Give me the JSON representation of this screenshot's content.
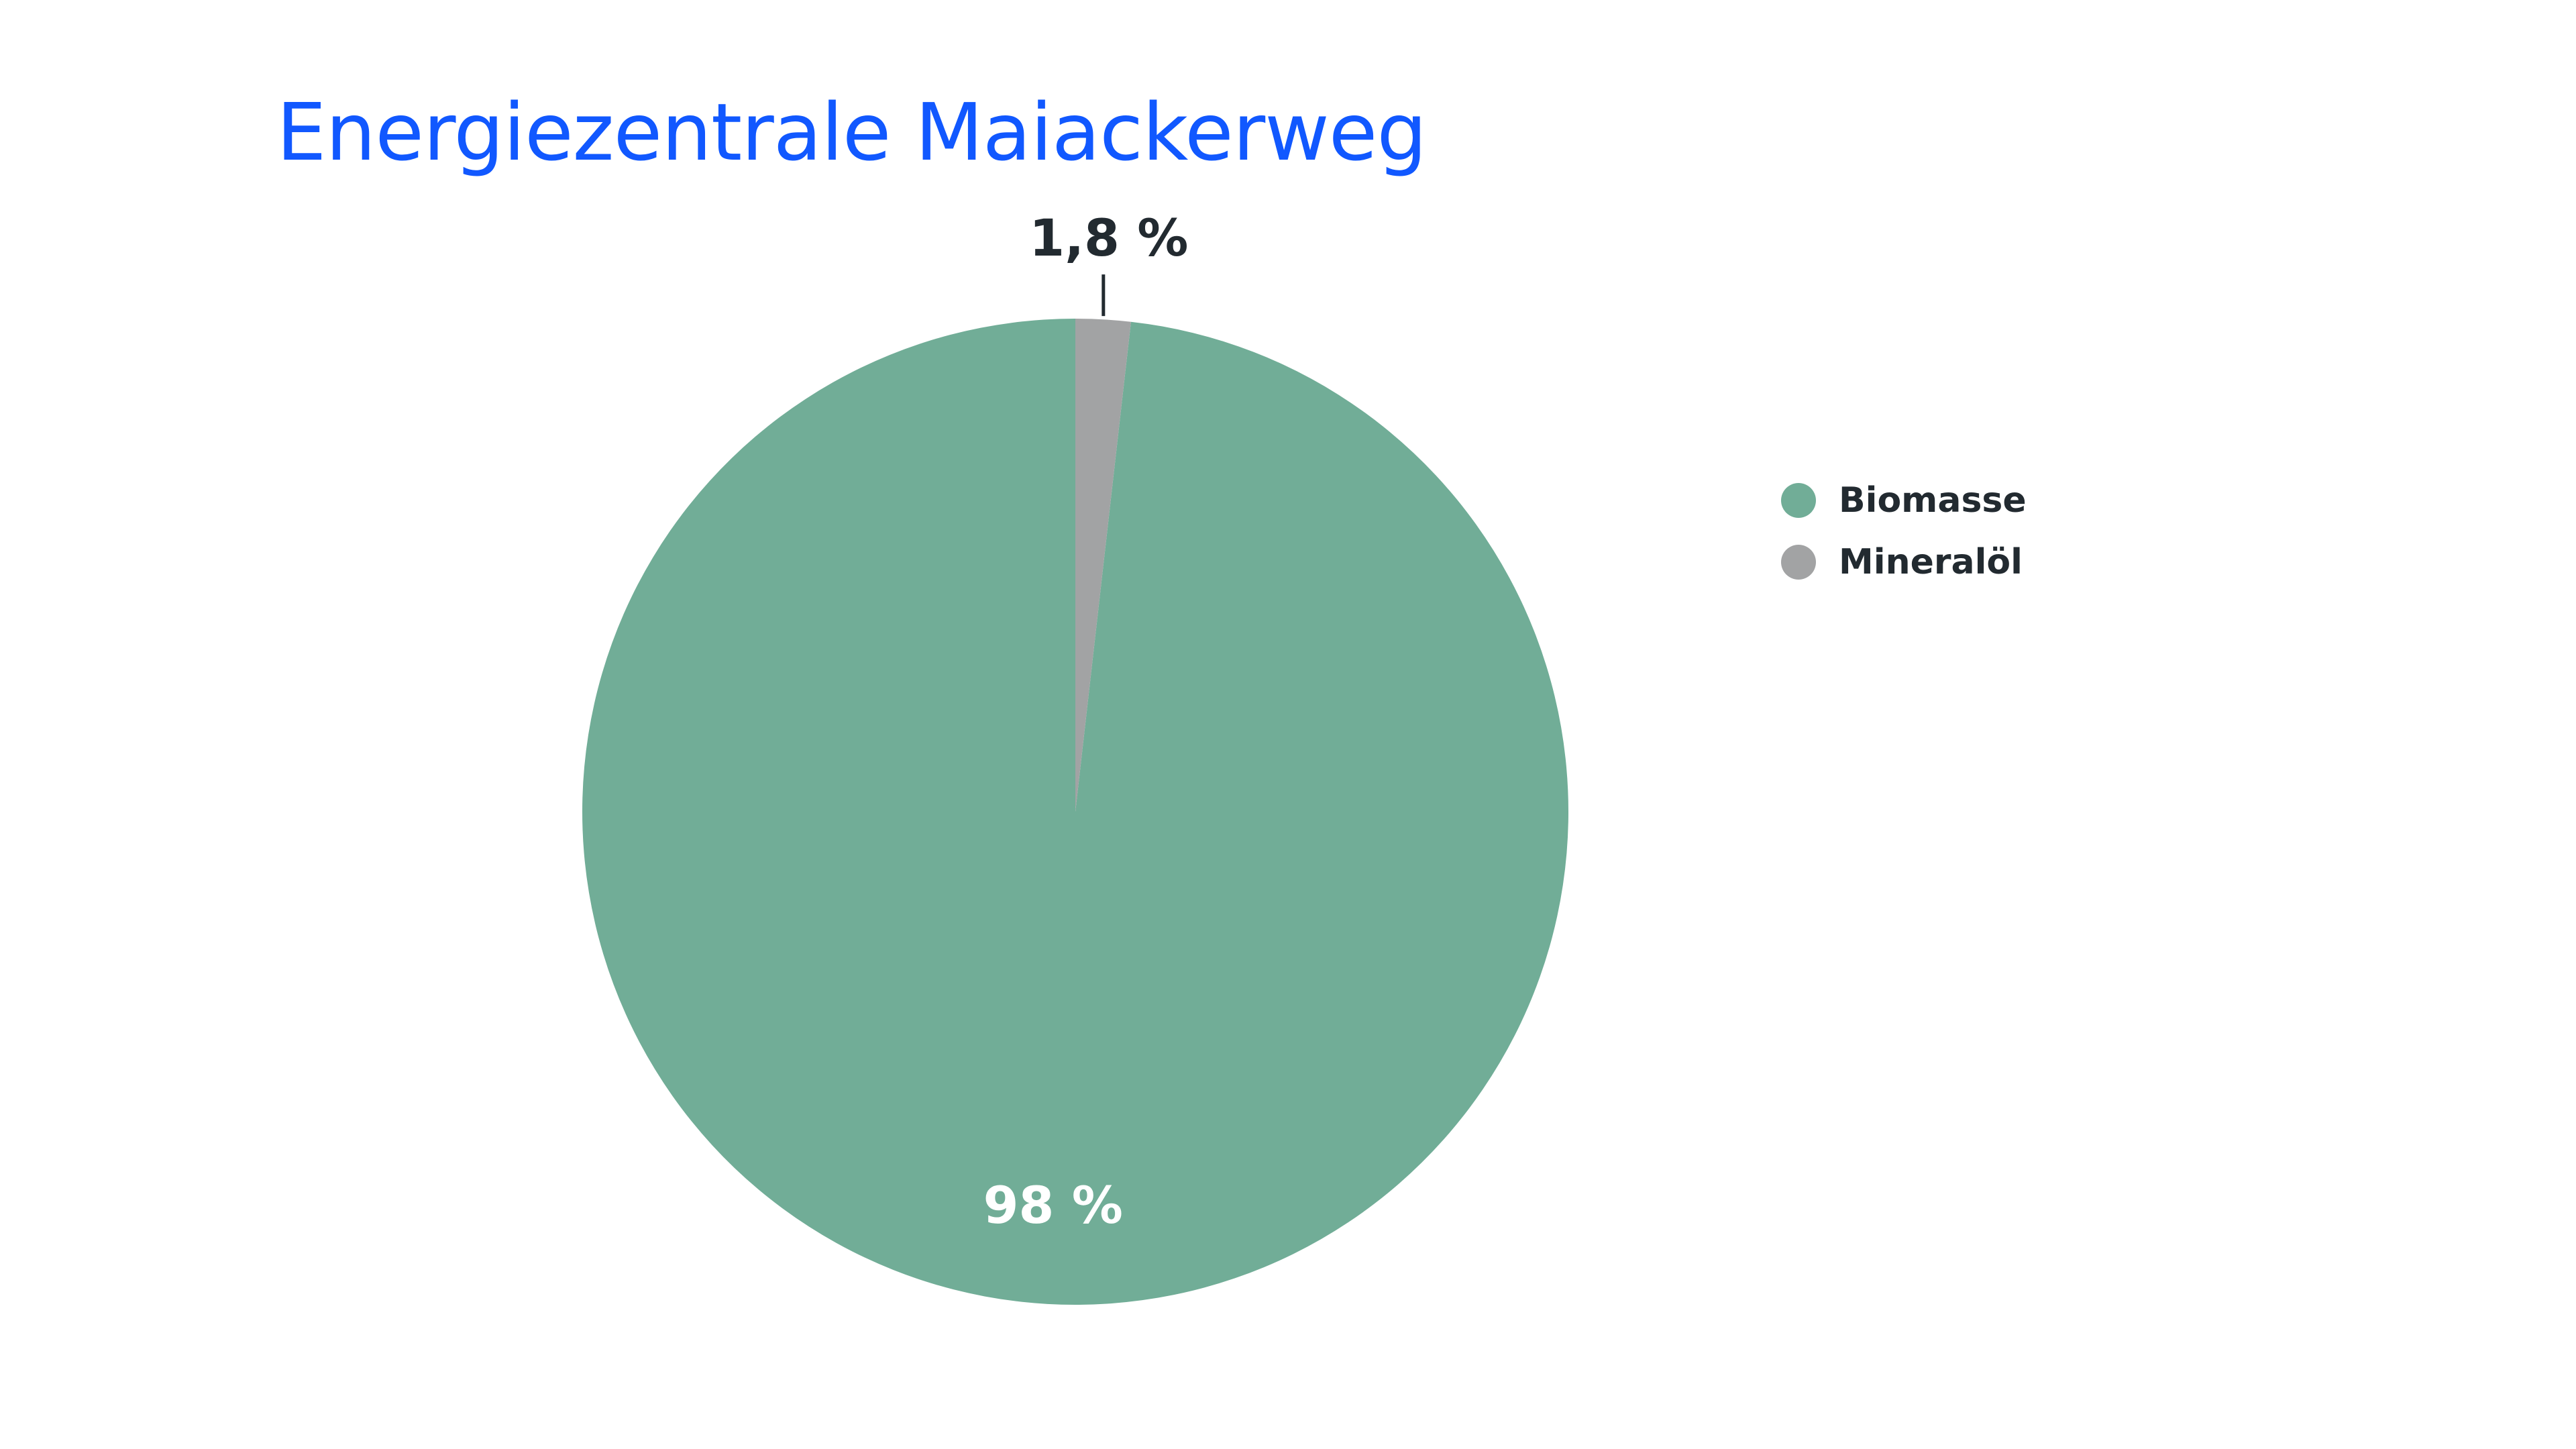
{
  "chart_data": {
    "type": "pie",
    "title": "Energiezentrale Maiackerweg",
    "slices": [
      {
        "name": "Biomasse",
        "value": 98.2,
        "label": "98 %",
        "color": "#71ad97"
      },
      {
        "name": "Mineralöl",
        "value": 1.8,
        "label": "1,8 %",
        "color": "#a2a3a4"
      }
    ],
    "legend": {
      "placement": "right",
      "items": [
        {
          "label": "Biomasse",
          "color": "#71ad97"
        },
        {
          "label": "Mineralöl",
          "color": "#a2a3a4"
        }
      ]
    },
    "colors": {
      "title": "#1158ff",
      "text_dark": "#222a30",
      "text_light": "#ffffff"
    }
  }
}
